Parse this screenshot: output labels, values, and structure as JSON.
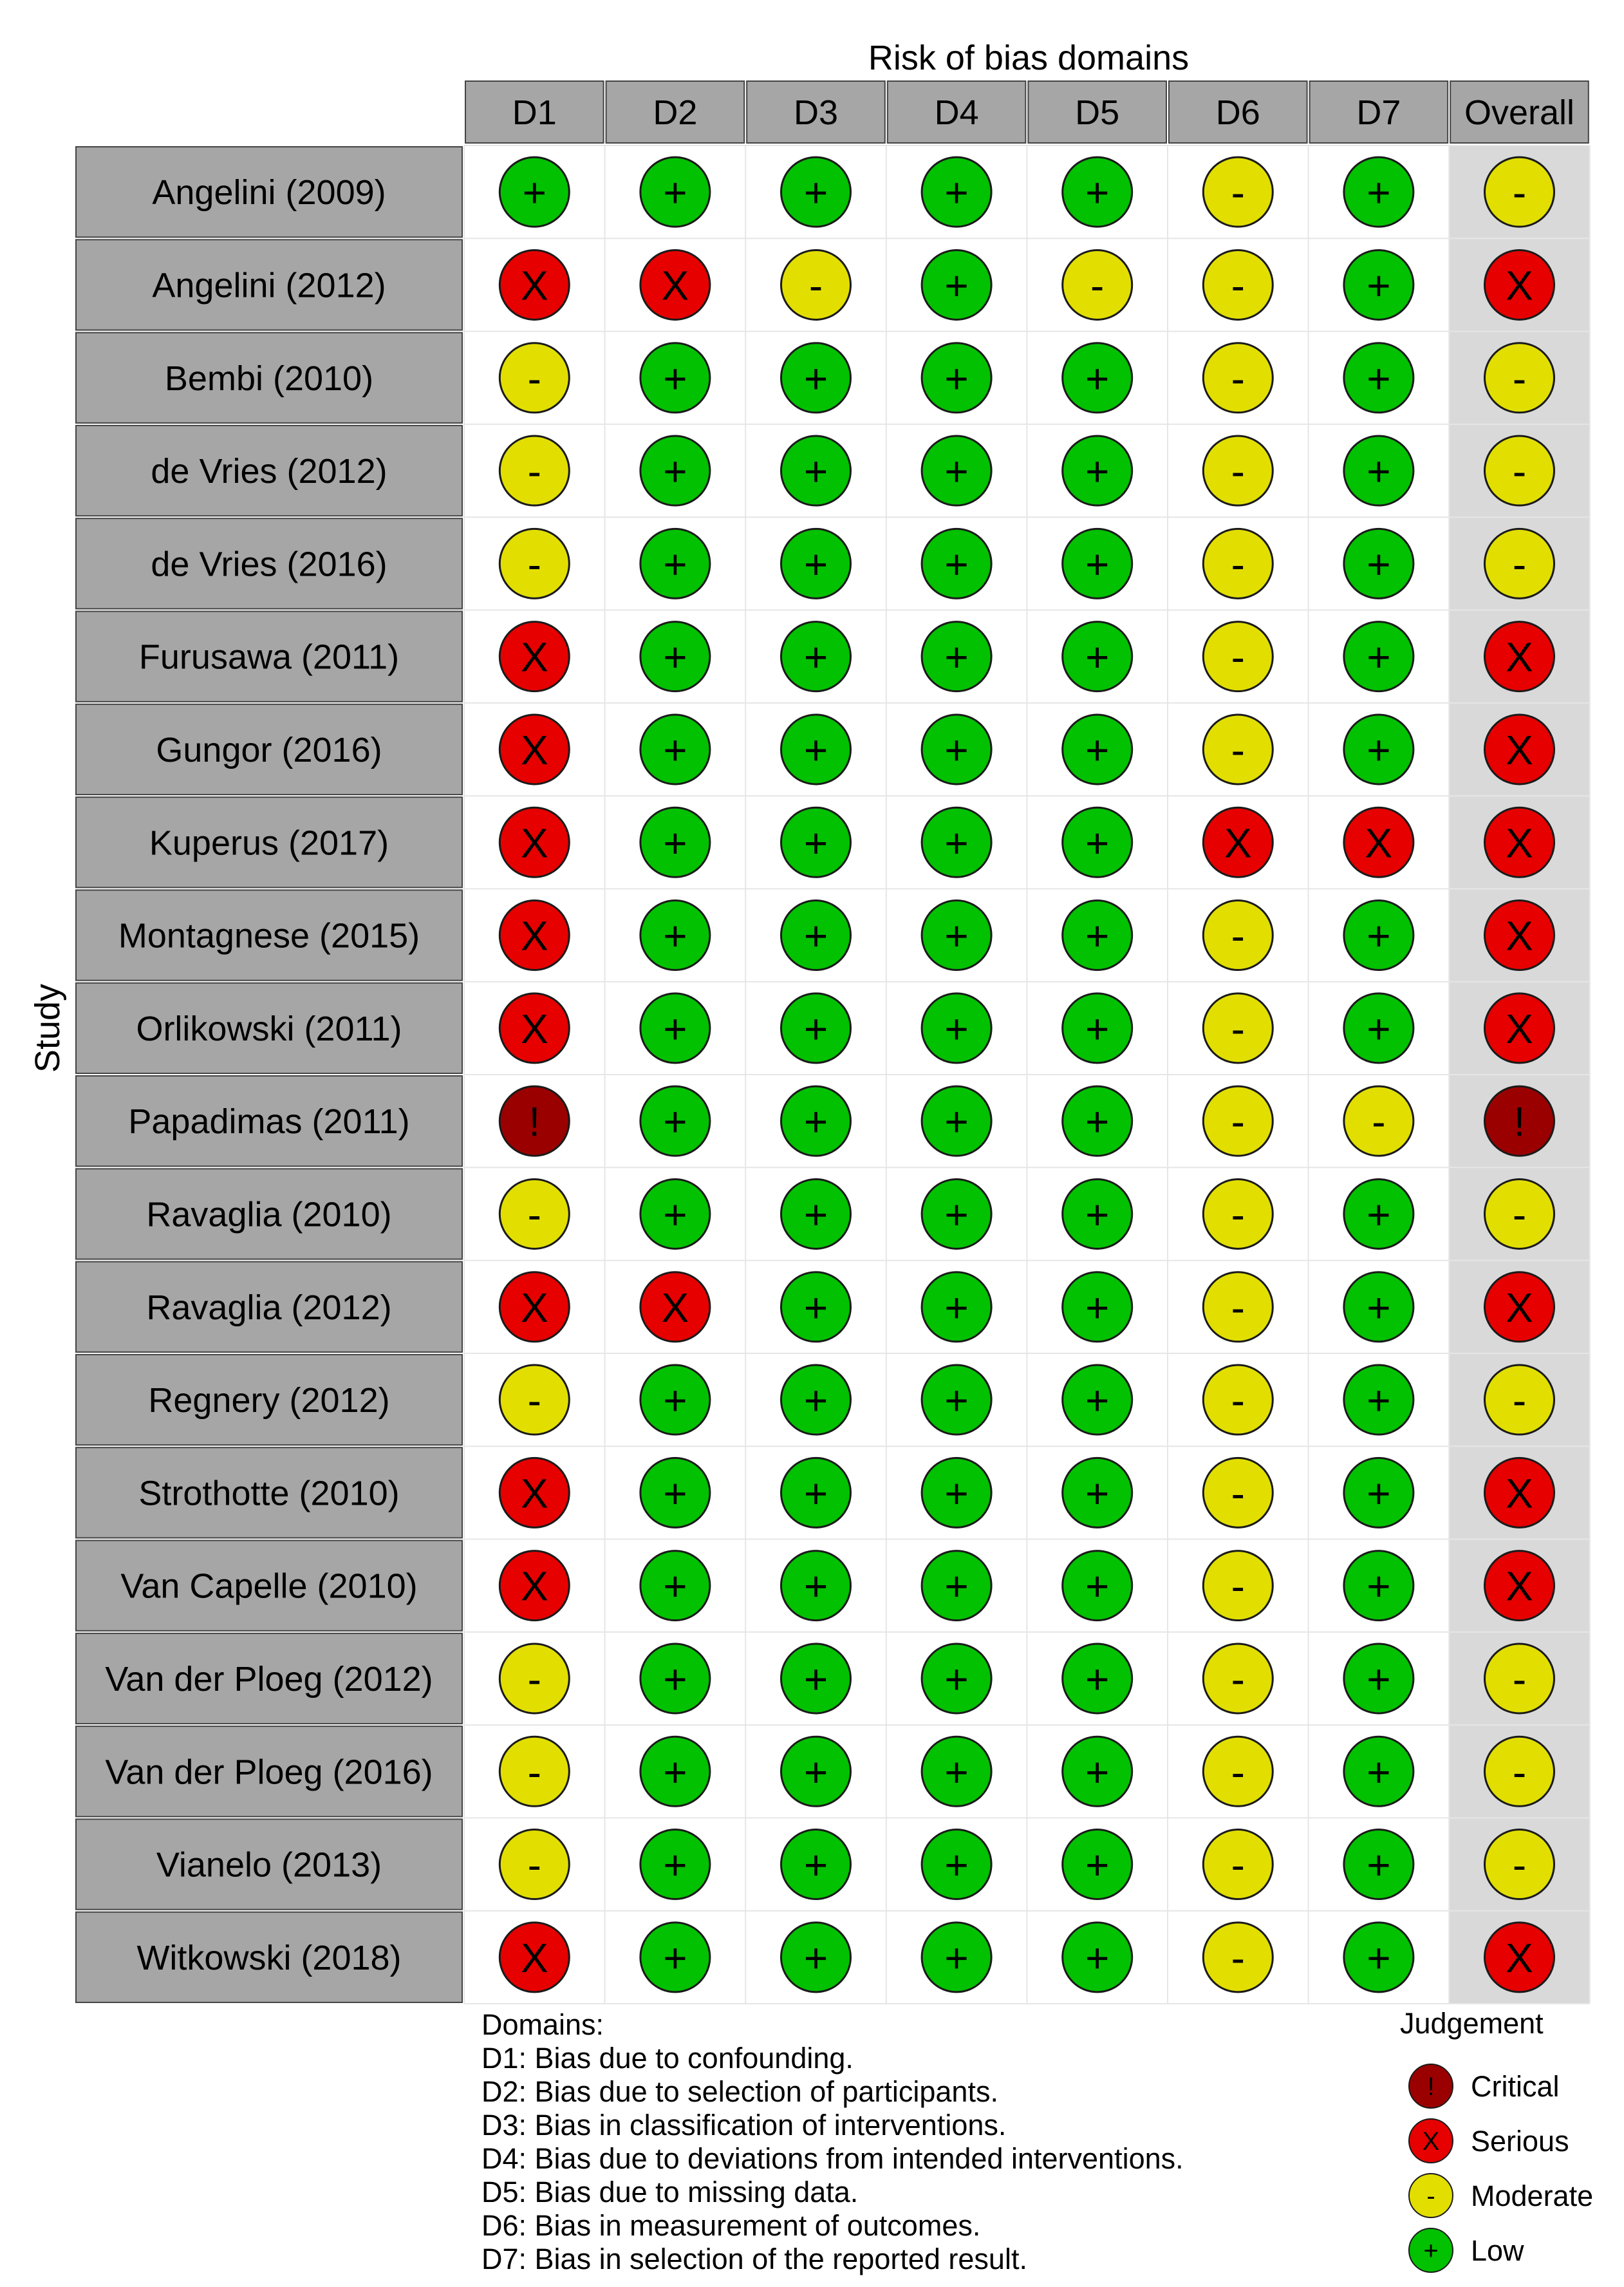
{
  "chart_data": {
    "type": "table",
    "title": "Risk of bias domains",
    "ylabel": "Study",
    "columns": [
      "D1",
      "D2",
      "D3",
      "D4",
      "D5",
      "D6",
      "D7",
      "Overall"
    ],
    "rows": [
      {
        "study": "Angelini (2009)",
        "judgements": [
          "low",
          "low",
          "low",
          "low",
          "low",
          "moderate",
          "low",
          "moderate"
        ]
      },
      {
        "study": "Angelini (2012)",
        "judgements": [
          "serious",
          "serious",
          "moderate",
          "low",
          "moderate",
          "moderate",
          "low",
          "serious"
        ]
      },
      {
        "study": "Bembi (2010)",
        "judgements": [
          "moderate",
          "low",
          "low",
          "low",
          "low",
          "moderate",
          "low",
          "moderate"
        ]
      },
      {
        "study": "de Vries (2012)",
        "judgements": [
          "moderate",
          "low",
          "low",
          "low",
          "low",
          "moderate",
          "low",
          "moderate"
        ]
      },
      {
        "study": "de Vries (2016)",
        "judgements": [
          "moderate",
          "low",
          "low",
          "low",
          "low",
          "moderate",
          "low",
          "moderate"
        ]
      },
      {
        "study": "Furusawa (2011)",
        "judgements": [
          "serious",
          "low",
          "low",
          "low",
          "low",
          "moderate",
          "low",
          "serious"
        ]
      },
      {
        "study": "Gungor (2016)",
        "judgements": [
          "serious",
          "low",
          "low",
          "low",
          "low",
          "moderate",
          "low",
          "serious"
        ]
      },
      {
        "study": "Kuperus (2017)",
        "judgements": [
          "serious",
          "low",
          "low",
          "low",
          "low",
          "serious",
          "serious",
          "serious"
        ]
      },
      {
        "study": "Montagnese (2015)",
        "judgements": [
          "serious",
          "low",
          "low",
          "low",
          "low",
          "moderate",
          "low",
          "serious"
        ]
      },
      {
        "study": "Orlikowski (2011)",
        "judgements": [
          "serious",
          "low",
          "low",
          "low",
          "low",
          "moderate",
          "low",
          "serious"
        ]
      },
      {
        "study": "Papadimas (2011)",
        "judgements": [
          "critical",
          "low",
          "low",
          "low",
          "low",
          "moderate",
          "moderate",
          "critical"
        ]
      },
      {
        "study": "Ravaglia (2010)",
        "judgements": [
          "moderate",
          "low",
          "low",
          "low",
          "low",
          "moderate",
          "low",
          "moderate"
        ]
      },
      {
        "study": "Ravaglia (2012)",
        "judgements": [
          "serious",
          "serious",
          "low",
          "low",
          "low",
          "moderate",
          "low",
          "serious"
        ]
      },
      {
        "study": "Regnery (2012)",
        "judgements": [
          "moderate",
          "low",
          "low",
          "low",
          "low",
          "moderate",
          "low",
          "moderate"
        ]
      },
      {
        "study": "Strothotte (2010)",
        "judgements": [
          "serious",
          "low",
          "low",
          "low",
          "low",
          "moderate",
          "low",
          "serious"
        ]
      },
      {
        "study": "Van Capelle (2010)",
        "judgements": [
          "serious",
          "low",
          "low",
          "low",
          "low",
          "moderate",
          "low",
          "serious"
        ]
      },
      {
        "study": "Van der Ploeg (2012)",
        "judgements": [
          "moderate",
          "low",
          "low",
          "low",
          "low",
          "moderate",
          "low",
          "moderate"
        ]
      },
      {
        "study": "Van der Ploeg (2016)",
        "judgements": [
          "moderate",
          "low",
          "low",
          "low",
          "low",
          "moderate",
          "low",
          "moderate"
        ]
      },
      {
        "study": "Vianelo (2013)",
        "judgements": [
          "moderate",
          "low",
          "low",
          "low",
          "low",
          "moderate",
          "low",
          "moderate"
        ]
      },
      {
        "study": "Witkowski (2018)",
        "judgements": [
          "serious",
          "low",
          "low",
          "low",
          "low",
          "moderate",
          "low",
          "serious"
        ]
      }
    ],
    "levels": {
      "critical": {
        "label": "Critical",
        "symbol": "!",
        "color": "#9b0000"
      },
      "serious": {
        "label": "Serious",
        "symbol": "X",
        "color": "#e60000"
      },
      "moderate": {
        "label": "Moderate",
        "symbol": "-",
        "color": "#e2df00"
      },
      "low": {
        "label": "Low",
        "symbol": "+",
        "color": "#02c100"
      }
    },
    "legend": {
      "title": "Judgement",
      "order": [
        "critical",
        "serious",
        "moderate",
        "low"
      ],
      "position": "bottom-right"
    },
    "domains_heading": "Domains:",
    "domain_notes": [
      "D1: Bias due to confounding.",
      "D2: Bias due to selection of participants.",
      "D3: Bias in classification of interventions.",
      "D4: Bias due to deviations from intended interventions.",
      "D5: Bias due to missing data.",
      "D6: Bias in measurement of outcomes.",
      "D7: Bias in selection of the reported result."
    ]
  }
}
